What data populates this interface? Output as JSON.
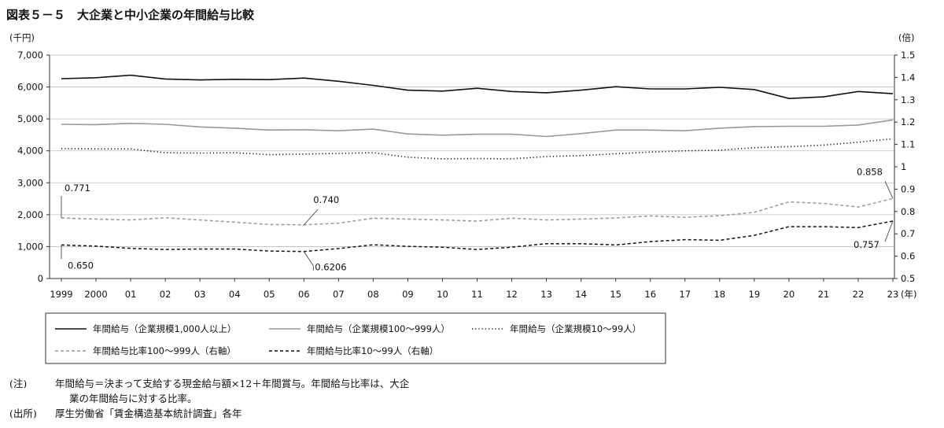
{
  "figure_title": "図表５－５　大企業と中小企業の年間給与比較",
  "chart_data": {
    "type": "line",
    "title": "図表５－５　大企業と中小企業の年間給与比較",
    "x_tick_labels": [
      "1999",
      "2000",
      "01",
      "02",
      "03",
      "04",
      "05",
      "06",
      "07",
      "08",
      "09",
      "10",
      "11",
      "12",
      "13",
      "14",
      "15",
      "16",
      "17",
      "18",
      "19",
      "20",
      "21",
      "22",
      "23"
    ],
    "x_unit": "(年)",
    "x": [
      1999,
      2000,
      2001,
      2002,
      2003,
      2004,
      2005,
      2006,
      2007,
      2008,
      2009,
      2010,
      2011,
      2012,
      2013,
      2014,
      2015,
      2016,
      2017,
      2018,
      2019,
      2020,
      2021,
      2022,
      2023
    ],
    "y_left": {
      "unit": "(千円)",
      "min": 0,
      "max": 7000,
      "ticks": [
        "0",
        "1,000",
        "2,000",
        "3,000",
        "4,000",
        "5,000",
        "6,000",
        "7,000"
      ],
      "tick_values": [
        0,
        1000,
        2000,
        3000,
        4000,
        5000,
        6000,
        7000
      ]
    },
    "y_right": {
      "unit": "(倍)",
      "min": 0.5,
      "max": 1.5,
      "ticks": [
        "0.5",
        "0.6",
        "0.7",
        "0.8",
        "0.9",
        "1",
        "1.1",
        "1.2",
        "1.3",
        "1.4",
        "1.5"
      ],
      "tick_values": [
        0.5,
        0.6,
        0.7,
        0.8,
        0.9,
        1.0,
        1.1,
        1.2,
        1.3,
        1.4,
        1.5
      ]
    },
    "grid": "horizontal",
    "legend_position": "bottom",
    "series": [
      {
        "name": "年間給与（企業規模1,000人以上）",
        "axis": "left",
        "style": "solid",
        "color": "#111111",
        "values": [
          6260,
          6290,
          6370,
          6250,
          6220,
          6240,
          6230,
          6280,
          6180,
          6050,
          5900,
          5870,
          5960,
          5860,
          5820,
          5900,
          6010,
          5940,
          5940,
          5990,
          5920,
          5640,
          5690,
          5860,
          5790
        ]
      },
      {
        "name": "年間給与（企業規模100～999人）",
        "axis": "left",
        "style": "solid",
        "color": "#999999",
        "values": [
          4830,
          4820,
          4860,
          4830,
          4750,
          4710,
          4650,
          4660,
          4630,
          4680,
          4530,
          4490,
          4520,
          4520,
          4450,
          4540,
          4650,
          4650,
          4630,
          4710,
          4760,
          4770,
          4770,
          4810,
          4970
        ]
      },
      {
        "name": "年間給与（企業規模10～99人）",
        "axis": "left",
        "style": "dotted",
        "color": "#111111",
        "values": [
          4070,
          4060,
          4060,
          3940,
          3930,
          3940,
          3880,
          3900,
          3920,
          3940,
          3800,
          3750,
          3760,
          3750,
          3820,
          3850,
          3910,
          3960,
          4000,
          4020,
          4100,
          4130,
          4180,
          4270,
          4380
        ]
      },
      {
        "name": "年間給与比率100～999人（右軸）",
        "axis": "right",
        "style": "dashed",
        "color": "#999999",
        "values": [
          0.771,
          0.766,
          0.762,
          0.772,
          0.762,
          0.752,
          0.742,
          0.74,
          0.748,
          0.77,
          0.766,
          0.762,
          0.757,
          0.77,
          0.762,
          0.766,
          0.771,
          0.78,
          0.774,
          0.781,
          0.796,
          0.843,
          0.836,
          0.82,
          0.858
        ]
      },
      {
        "name": "年間給与比率10～99人（右軸）",
        "axis": "right",
        "style": "dashed",
        "color": "#111111",
        "values": [
          0.65,
          0.645,
          0.635,
          0.63,
          0.632,
          0.632,
          0.623,
          0.6206,
          0.634,
          0.651,
          0.644,
          0.64,
          0.63,
          0.64,
          0.656,
          0.656,
          0.65,
          0.665,
          0.674,
          0.671,
          0.693,
          0.732,
          0.732,
          0.728,
          0.757
        ]
      }
    ],
    "annotations": [
      {
        "text": "0.771",
        "series": 3,
        "index": 0
      },
      {
        "text": "0.740",
        "series": 3,
        "index": 7
      },
      {
        "text": "0.858",
        "series": 3,
        "index": 24
      },
      {
        "text": "0.650",
        "series": 4,
        "index": 0
      },
      {
        "text": "0.6206",
        "series": 4,
        "index": 7
      },
      {
        "text": "0.757",
        "series": 4,
        "index": 24
      }
    ]
  },
  "notes": {
    "note_label": "(注)",
    "note_line1": "年間給与＝決まって支給する現金給与額×12＋年間賞与。年間給与比率は、大企",
    "note_line2": "業の年間給与に対する比率。",
    "source_label": "(出所)",
    "source_text": "厚生労働省「賃金構造基本統計調査」各年"
  }
}
